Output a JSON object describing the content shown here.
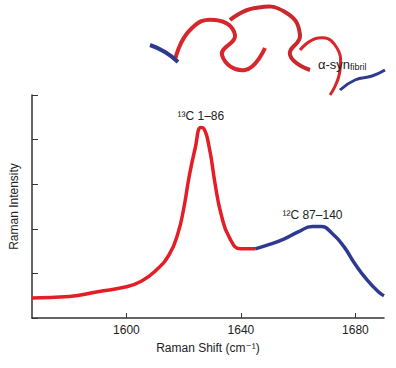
{
  "chart_data": {
    "type": "line",
    "x_label": "Raman Shift (cm⁻¹)",
    "y_label": "Raman Intensity",
    "xlim": [
      1567,
      1690
    ],
    "xticks": [
      1600,
      1640,
      1680
    ],
    "ylim": [
      0,
      5
    ],
    "yticks": [
      0,
      1,
      2,
      3,
      4,
      5
    ],
    "tick_labels": "x",
    "grid": false,
    "annotations": [
      {
        "text": "α-syn",
        "subscript": "fibril"
      }
    ],
    "series": [
      {
        "name": "¹³C 1–86",
        "color": "#e31e26",
        "x": [
          1567,
          1580,
          1590,
          1600,
          1605,
          1610,
          1615,
          1618,
          1620,
          1622,
          1624,
          1626,
          1627,
          1629,
          1631,
          1633,
          1636,
          1640,
          1645
        ],
        "values": [
          0.45,
          0.48,
          0.59,
          0.7,
          0.82,
          1.05,
          1.43,
          1.9,
          2.45,
          3.2,
          3.8,
          4.27,
          4.25,
          3.8,
          3.0,
          2.35,
          1.8,
          1.55,
          1.55
        ]
      },
      {
        "name": "¹²C 87–140",
        "color": "#2e3a8f",
        "x": [
          1645,
          1650,
          1655,
          1660,
          1665,
          1668,
          1672,
          1676,
          1680,
          1684,
          1688,
          1690
        ],
        "values": [
          1.55,
          1.65,
          1.77,
          1.93,
          2.05,
          2.05,
          1.89,
          1.6,
          1.2,
          0.86,
          0.59,
          0.5
        ]
      }
    ]
  }
}
